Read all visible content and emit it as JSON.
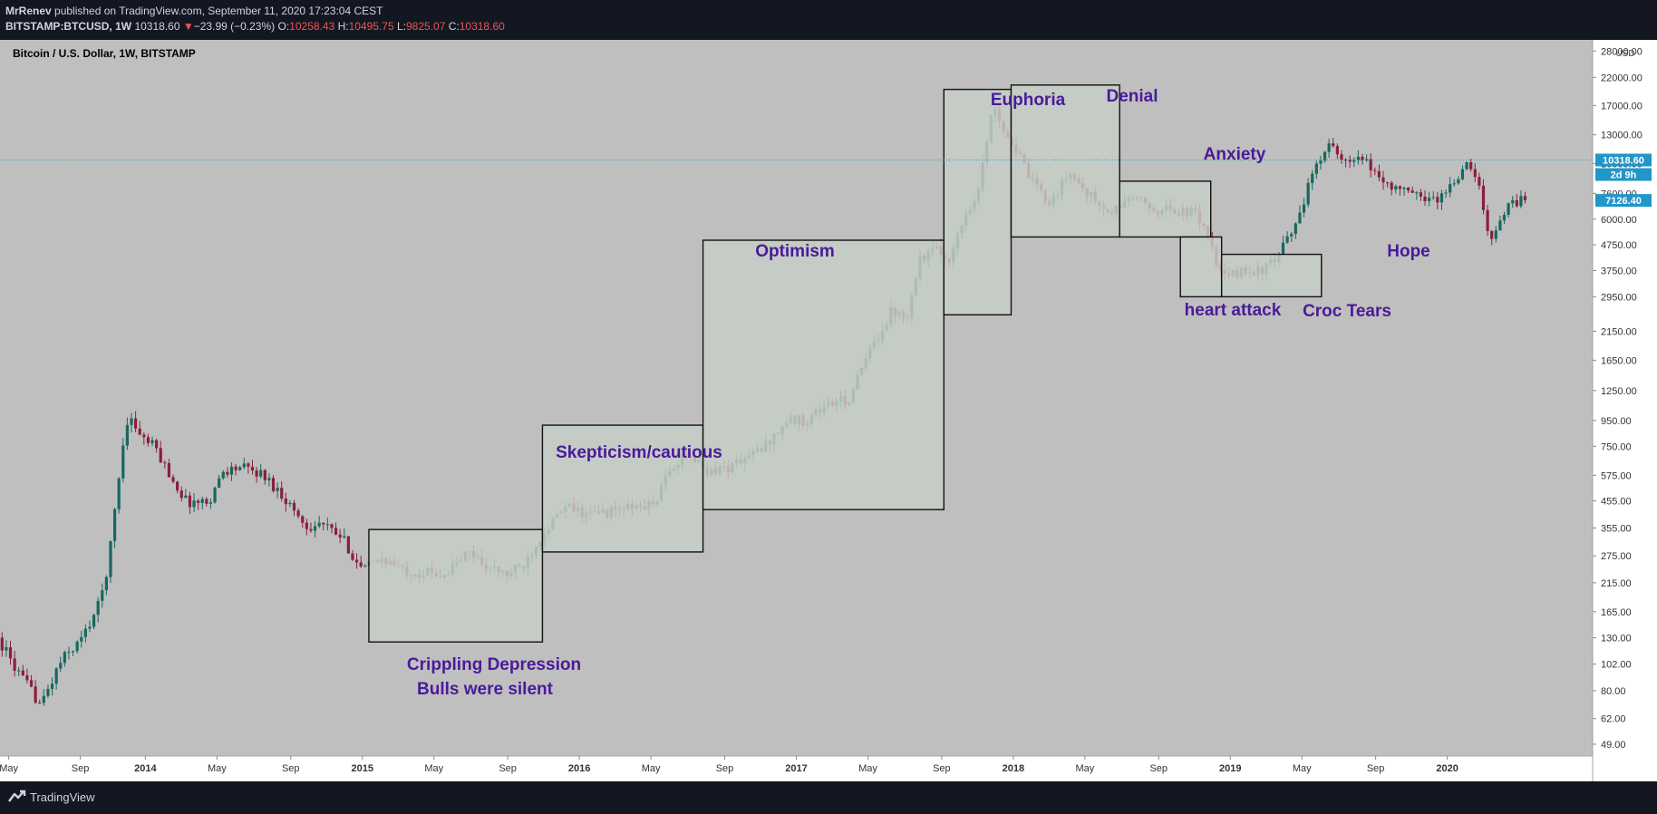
{
  "header": {
    "author": "MrRenev",
    "published_text": " published on TradingView.com, September 11, 2020 17:23:04 CEST",
    "symbol": "BITSTAMP:BTCUSD, 1W",
    "last": "10318.60",
    "change_arrow": "▼",
    "change": "−23.99 (−0.23%)",
    "o_label": "O:",
    "o_value": "10258.43",
    "h_label": "H:",
    "h_value": "10495.75",
    "l_label": "L:",
    "l_value": "9825.07",
    "c_label": "C:",
    "c_value": "10318.60"
  },
  "footer": {
    "brand": "TradingView"
  },
  "colors": {
    "plot_bg": "#bfbfbf",
    "axis_bg": "#ffffff",
    "up": "#17685e",
    "down": "#8a1f3d",
    "label": "#4a1a9a",
    "box_fill": "#c6ccc5",
    "last_price_bg": "#2196c8",
    "dark_bg": "#131722"
  },
  "chart_data": {
    "type": "candlestick",
    "title": "Bitcoin / U.S. Dollar, 1W, BITSTAMP",
    "scale": "log",
    "currency": "USD",
    "ylim": [
      44,
      31000
    ],
    "y_ticks": [
      49,
      62,
      80,
      102,
      130,
      165,
      215,
      275,
      355,
      455,
      575,
      750,
      950,
      1250,
      1650,
      2150,
      2950,
      3750,
      4750,
      6000,
      7600,
      10000,
      13000,
      17000,
      22000,
      28000
    ],
    "y_tick_labels": [
      "49.00",
      "62.00",
      "80.00",
      "102.00",
      "130.00",
      "165.00",
      "215.00",
      "275.00",
      "355.00",
      "455.00",
      "575.00",
      "750.00",
      "950.00",
      "1250.00",
      "1650.00",
      "2150.00",
      "2950.00",
      "3750.00",
      "4750.00",
      "6000.00",
      "7600.00",
      "10000.00",
      "13000.00",
      "17000.00",
      "22000.00",
      "28000.00"
    ],
    "xlim": [
      2013.33,
      2020.67
    ],
    "x_ticks": [
      {
        "t": 2013.37,
        "label": "May",
        "bold": false
      },
      {
        "t": 2013.7,
        "label": "Sep",
        "bold": false
      },
      {
        "t": 2014.0,
        "label": "2014",
        "bold": true
      },
      {
        "t": 2014.33,
        "label": "May",
        "bold": false
      },
      {
        "t": 2014.67,
        "label": "Sep",
        "bold": false
      },
      {
        "t": 2015.0,
        "label": "2015",
        "bold": true
      },
      {
        "t": 2015.33,
        "label": "May",
        "bold": false
      },
      {
        "t": 2015.67,
        "label": "Sep",
        "bold": false
      },
      {
        "t": 2016.0,
        "label": "2016",
        "bold": true
      },
      {
        "t": 2016.33,
        "label": "May",
        "bold": false
      },
      {
        "t": 2016.67,
        "label": "Sep",
        "bold": false
      },
      {
        "t": 2017.0,
        "label": "2017",
        "bold": true
      },
      {
        "t": 2017.33,
        "label": "May",
        "bold": false
      },
      {
        "t": 2017.67,
        "label": "Sep",
        "bold": false
      },
      {
        "t": 2018.0,
        "label": "2018",
        "bold": true
      },
      {
        "t": 2018.33,
        "label": "May",
        "bold": false
      },
      {
        "t": 2018.67,
        "label": "Sep",
        "bold": false
      },
      {
        "t": 2019.0,
        "label": "2019",
        "bold": true
      },
      {
        "t": 2019.33,
        "label": "May",
        "bold": false
      },
      {
        "t": 2019.67,
        "label": "Sep",
        "bold": false
      },
      {
        "t": 2020.0,
        "label": "2020",
        "bold": true
      }
    ],
    "price_path": [
      [
        2013.33,
        130
      ],
      [
        2013.42,
        95
      ],
      [
        2013.53,
        70
      ],
      [
        2013.62,
        105
      ],
      [
        2013.72,
        130
      ],
      [
        2013.8,
        180
      ],
      [
        2013.84,
        260
      ],
      [
        2013.9,
        700
      ],
      [
        2013.93,
        1000
      ],
      [
        2014.0,
        800
      ],
      [
        2014.05,
        750
      ],
      [
        2014.12,
        580
      ],
      [
        2014.2,
        450
      ],
      [
        2014.3,
        450
      ],
      [
        2014.37,
        600
      ],
      [
        2014.45,
        620
      ],
      [
        2014.55,
        580
      ],
      [
        2014.65,
        470
      ],
      [
        2014.75,
        360
      ],
      [
        2014.82,
        370
      ],
      [
        2014.92,
        320
      ],
      [
        2015.01,
        240
      ],
      [
        2015.1,
        270
      ],
      [
        2015.2,
        240
      ],
      [
        2015.3,
        235
      ],
      [
        2015.4,
        235
      ],
      [
        2015.5,
        285
      ],
      [
        2015.6,
        245
      ],
      [
        2015.67,
        230
      ],
      [
        2015.75,
        250
      ],
      [
        2015.85,
        350
      ],
      [
        2015.95,
        430
      ],
      [
        2016.05,
        400
      ],
      [
        2016.2,
        420
      ],
      [
        2016.35,
        440
      ],
      [
        2016.45,
        650
      ],
      [
        2016.52,
        680
      ],
      [
        2016.6,
        600
      ],
      [
        2016.7,
        620
      ],
      [
        2016.85,
        730
      ],
      [
        2016.97,
        950
      ],
      [
        2017.05,
        950
      ],
      [
        2017.15,
        1100
      ],
      [
        2017.25,
        1150
      ],
      [
        2017.35,
        1800
      ],
      [
        2017.45,
        2600
      ],
      [
        2017.52,
        2500
      ],
      [
        2017.58,
        4200
      ],
      [
        2017.65,
        4500
      ],
      [
        2017.72,
        4200
      ],
      [
        2017.78,
        6000
      ],
      [
        2017.85,
        8000
      ],
      [
        2017.92,
        17500
      ],
      [
        2017.96,
        14000
      ],
      [
        2018.03,
        11000
      ],
      [
        2018.09,
        8500
      ],
      [
        2018.18,
        7000
      ],
      [
        2018.27,
        9200
      ],
      [
        2018.36,
        7500
      ],
      [
        2018.45,
        6200
      ],
      [
        2018.55,
        7400
      ],
      [
        2018.65,
        6600
      ],
      [
        2018.75,
        6500
      ],
      [
        2018.85,
        6300
      ],
      [
        2018.9,
        5500
      ],
      [
        2018.95,
        3800
      ],
      [
        2018.99,
        3500
      ],
      [
        2019.05,
        3700
      ],
      [
        2019.15,
        3750
      ],
      [
        2019.22,
        4100
      ],
      [
        2019.3,
        5500
      ],
      [
        2019.38,
        8500
      ],
      [
        2019.46,
        12500
      ],
      [
        2019.52,
        10000
      ],
      [
        2019.62,
        10300
      ],
      [
        2019.73,
        8300
      ],
      [
        2019.85,
        7500
      ],
      [
        2019.97,
        7200
      ],
      [
        2020.1,
        9800
      ],
      [
        2020.15,
        8600
      ],
      [
        2020.2,
        5000
      ],
      [
        2020.3,
        7000
      ],
      [
        2020.35,
        7126
      ]
    ],
    "annotation_boxes": [
      {
        "name": "crippling-depression",
        "t0": 2015.03,
        "t1": 2015.83,
        "p0": 125,
        "p1": 350
      },
      {
        "name": "skepticism",
        "t0": 2015.83,
        "t1": 2016.57,
        "p0": 285,
        "p1": 910
      },
      {
        "name": "optimism",
        "t0": 2016.57,
        "t1": 2017.68,
        "p0": 420,
        "p1": 4950
      },
      {
        "name": "euphoria",
        "t0": 2017.68,
        "t1": 2017.99,
        "p0": 2500,
        "p1": 19700
      },
      {
        "name": "denial",
        "t0": 2017.99,
        "t1": 2018.49,
        "p0": 5100,
        "p1": 20500
      },
      {
        "name": "anxiety",
        "t0": 2018.49,
        "t1": 2018.91,
        "p0": 5100,
        "p1": 8500
      },
      {
        "name": "heart-attack",
        "t0": 2018.77,
        "t1": 2018.96,
        "p0": 2950,
        "p1": 5100
      },
      {
        "name": "croc-tears",
        "t0": 2018.96,
        "t1": 2019.42,
        "p0": 2950,
        "p1": 4350
      }
    ],
    "annotations": [
      {
        "id": "crippling",
        "text": "Crippling Depression"
      },
      {
        "id": "bulls",
        "text": "Bulls were silent"
      },
      {
        "id": "skepticism",
        "text": "Skepticism/cautious"
      },
      {
        "id": "optimism",
        "text": "Optimism"
      },
      {
        "id": "euphoria",
        "text": "Euphoria"
      },
      {
        "id": "denial",
        "text": "Denial"
      },
      {
        "id": "anxiety",
        "text": "Anxiety"
      },
      {
        "id": "heart_attack",
        "text": "heart attack"
      },
      {
        "id": "croc_tears",
        "text": "Croc Tears"
      },
      {
        "id": "hope",
        "text": "Hope"
      }
    ],
    "last_price": 10318.6,
    "last_price_label": "10318.60",
    "countdown_label": "2d 9h",
    "current_price": 7126.4,
    "current_price_label": "7126.40"
  }
}
